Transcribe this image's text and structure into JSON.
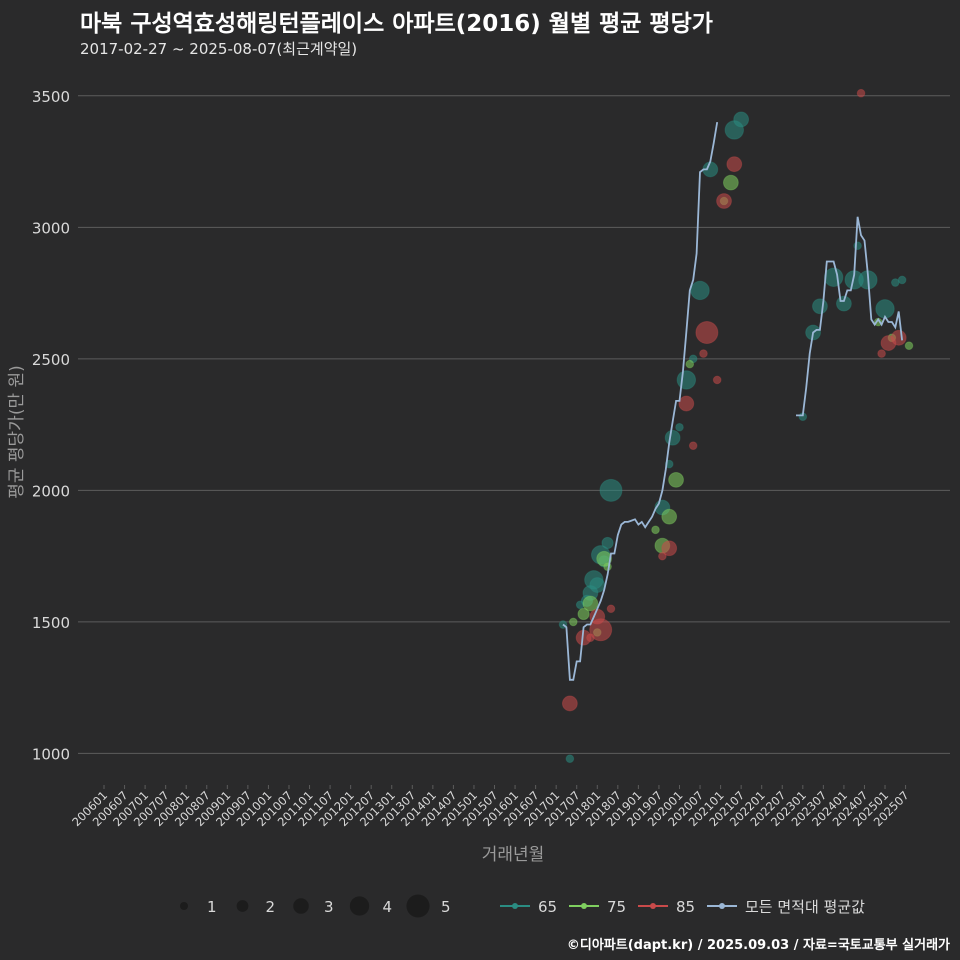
{
  "header": {
    "title": "마북 구성역효성해링턴플레이스 아파트(2016) 월별 평균 평당가",
    "subtitle": "2017-02-27 ~ 2025-08-07(최근계약일)"
  },
  "footer": {
    "caption": "©디아파트(dapt.kr) / 2025.09.03 / 자료=국토교통부 실거래가"
  },
  "colors": {
    "background": "#2a2a2b",
    "grid": "#5c5c5c",
    "axis_text": "#d9d9d9",
    "axis_title": "#9a9a9a",
    "area_65": "#2a8c82",
    "area_75": "#7fcf5f",
    "area_85": "#c94a4a",
    "avg_line": "#9bb7d6"
  },
  "chart_data": {
    "type": "scatter+line",
    "title": "마북 구성역효성해링턴플레이스 아파트(2016) 월별 평균 평당가",
    "xlabel": "거래년월",
    "ylabel": "평균 평당가(만 원)",
    "ylim": [
      880,
      3560
    ],
    "yticks": [
      1000,
      1500,
      2000,
      2500,
      3000,
      3500
    ],
    "xticks": [
      "200601",
      "200607",
      "200701",
      "200707",
      "200801",
      "200807",
      "200901",
      "200907",
      "201001",
      "201007",
      "201101",
      "201107",
      "201201",
      "201207",
      "201301",
      "201307",
      "201401",
      "201407",
      "201501",
      "201507",
      "201601",
      "201607",
      "201701",
      "201707",
      "201801",
      "201807",
      "201901",
      "201907",
      "202001",
      "202007",
      "202101",
      "202107",
      "202201",
      "202207",
      "202301",
      "202307",
      "202401",
      "202407",
      "202501",
      "202507"
    ],
    "xrange": [
      "2006-01",
      "2025-08"
    ],
    "legend": {
      "size_title": "",
      "sizes": [
        1,
        2,
        3,
        4,
        5
      ],
      "series_labels": [
        "65",
        "75",
        "85",
        "모든 면적대 평균값"
      ]
    },
    "series": [
      {
        "name": "65",
        "points": [
          {
            "t": "2017-03",
            "y": 1490,
            "n": 1
          },
          {
            "t": "2017-05",
            "y": 980,
            "n": 1
          },
          {
            "t": "2017-08",
            "y": 1565,
            "n": 1
          },
          {
            "t": "2017-10",
            "y": 1580,
            "n": 2
          },
          {
            "t": "2017-11",
            "y": 1610,
            "n": 3
          },
          {
            "t": "2017-12",
            "y": 1660,
            "n": 4
          },
          {
            "t": "2018-01",
            "y": 1640,
            "n": 3
          },
          {
            "t": "2018-02",
            "y": 1755,
            "n": 4
          },
          {
            "t": "2018-03",
            "y": 1730,
            "n": 2
          },
          {
            "t": "2018-04",
            "y": 1800,
            "n": 2
          },
          {
            "t": "2018-05",
            "y": 2000,
            "n": 5
          },
          {
            "t": "2019-08",
            "y": 1935,
            "n": 3
          },
          {
            "t": "2019-10",
            "y": 2100,
            "n": 1
          },
          {
            "t": "2019-11",
            "y": 2200,
            "n": 3
          },
          {
            "t": "2020-01",
            "y": 2240,
            "n": 1
          },
          {
            "t": "2020-03",
            "y": 2420,
            "n": 4
          },
          {
            "t": "2020-05",
            "y": 2500,
            "n": 1
          },
          {
            "t": "2020-07",
            "y": 2760,
            "n": 4
          },
          {
            "t": "2020-10",
            "y": 3220,
            "n": 3
          },
          {
            "t": "2021-05",
            "y": 3370,
            "n": 4
          },
          {
            "t": "2021-07",
            "y": 3410,
            "n": 3
          },
          {
            "t": "2023-01",
            "y": 2280,
            "n": 1
          },
          {
            "t": "2023-04",
            "y": 2600,
            "n": 3
          },
          {
            "t": "2023-06",
            "y": 2700,
            "n": 3
          },
          {
            "t": "2023-10",
            "y": 2810,
            "n": 4
          },
          {
            "t": "2024-01",
            "y": 2710,
            "n": 3
          },
          {
            "t": "2024-04",
            "y": 2800,
            "n": 4
          },
          {
            "t": "2024-05",
            "y": 2930,
            "n": 1
          },
          {
            "t": "2024-08",
            "y": 2800,
            "n": 4
          },
          {
            "t": "2025-01",
            "y": 2690,
            "n": 4
          },
          {
            "t": "2025-04",
            "y": 2790,
            "n": 1
          },
          {
            "t": "2025-06",
            "y": 2800,
            "n": 1
          }
        ]
      },
      {
        "name": "75",
        "points": [
          {
            "t": "2017-06",
            "y": 1500,
            "n": 1
          },
          {
            "t": "2017-09",
            "y": 1530,
            "n": 2
          },
          {
            "t": "2017-11",
            "y": 1570,
            "n": 3
          },
          {
            "t": "2018-01",
            "y": 1460,
            "n": 1
          },
          {
            "t": "2018-03",
            "y": 1740,
            "n": 3
          },
          {
            "t": "2018-04",
            "y": 1710,
            "n": 1
          },
          {
            "t": "2019-06",
            "y": 1850,
            "n": 1
          },
          {
            "t": "2019-08",
            "y": 1790,
            "n": 3
          },
          {
            "t": "2019-10",
            "y": 1900,
            "n": 3
          },
          {
            "t": "2019-12",
            "y": 2040,
            "n": 3
          },
          {
            "t": "2020-04",
            "y": 2480,
            "n": 1
          },
          {
            "t": "2021-02",
            "y": 3100,
            "n": 1
          },
          {
            "t": "2021-04",
            "y": 3170,
            "n": 3
          },
          {
            "t": "2024-11",
            "y": 2640,
            "n": 1
          },
          {
            "t": "2025-03",
            "y": 2580,
            "n": 1
          },
          {
            "t": "2025-08",
            "y": 2550,
            "n": 1
          }
        ]
      },
      {
        "name": "85",
        "points": [
          {
            "t": "2017-05",
            "y": 1190,
            "n": 3
          },
          {
            "t": "2017-09",
            "y": 1440,
            "n": 3
          },
          {
            "t": "2017-11",
            "y": 1440,
            "n": 1
          },
          {
            "t": "2018-01",
            "y": 1520,
            "n": 3
          },
          {
            "t": "2018-02",
            "y": 1470,
            "n": 5
          },
          {
            "t": "2018-05",
            "y": 1550,
            "n": 1
          },
          {
            "t": "2019-08",
            "y": 1750,
            "n": 1
          },
          {
            "t": "2019-10",
            "y": 1780,
            "n": 3
          },
          {
            "t": "2020-03",
            "y": 2330,
            "n": 3
          },
          {
            "t": "2020-05",
            "y": 2170,
            "n": 1
          },
          {
            "t": "2020-08",
            "y": 2520,
            "n": 1
          },
          {
            "t": "2020-09",
            "y": 2600,
            "n": 5
          },
          {
            "t": "2020-12",
            "y": 2420,
            "n": 1
          },
          {
            "t": "2021-02",
            "y": 3100,
            "n": 3
          },
          {
            "t": "2021-05",
            "y": 3240,
            "n": 3
          },
          {
            "t": "2024-06",
            "y": 3510,
            "n": 1
          },
          {
            "t": "2024-12",
            "y": 2520,
            "n": 1
          },
          {
            "t": "2025-02",
            "y": 2560,
            "n": 3
          },
          {
            "t": "2025-05",
            "y": 2580,
            "n": 3
          }
        ]
      },
      {
        "name": "모든 면적대 평균값",
        "segments": [
          [
            {
              "t": "2017-03",
              "y": 1490
            },
            {
              "t": "2017-04",
              "y": 1480
            },
            {
              "t": "2017-05",
              "y": 1280
            },
            {
              "t": "2017-06",
              "y": 1280
            },
            {
              "t": "2017-07",
              "y": 1350
            },
            {
              "t": "2017-08",
              "y": 1350
            },
            {
              "t": "2017-09",
              "y": 1480
            },
            {
              "t": "2017-10",
              "y": 1490
            },
            {
              "t": "2017-11",
              "y": 1490
            },
            {
              "t": "2017-12",
              "y": 1520
            },
            {
              "t": "2018-01",
              "y": 1550
            },
            {
              "t": "2018-02",
              "y": 1580
            },
            {
              "t": "2018-03",
              "y": 1620
            },
            {
              "t": "2018-04",
              "y": 1680
            },
            {
              "t": "2018-05",
              "y": 1760
            },
            {
              "t": "2018-06",
              "y": 1760
            },
            {
              "t": "2018-07",
              "y": 1830
            },
            {
              "t": "2018-08",
              "y": 1870
            },
            {
              "t": "2018-09",
              "y": 1880
            },
            {
              "t": "2018-10",
              "y": 1880
            },
            {
              "t": "2018-11",
              "y": 1885
            },
            {
              "t": "2018-12",
              "y": 1890
            },
            {
              "t": "2019-01",
              "y": 1870
            },
            {
              "t": "2019-02",
              "y": 1880
            },
            {
              "t": "2019-03",
              "y": 1860
            },
            {
              "t": "2019-04",
              "y": 1880
            },
            {
              "t": "2019-05",
              "y": 1900
            },
            {
              "t": "2019-06",
              "y": 1930
            },
            {
              "t": "2019-07",
              "y": 1950
            },
            {
              "t": "2019-08",
              "y": 2000
            },
            {
              "t": "2019-09",
              "y": 2080
            },
            {
              "t": "2019-10",
              "y": 2180
            },
            {
              "t": "2019-11",
              "y": 2260
            },
            {
              "t": "2019-12",
              "y": 2340
            },
            {
              "t": "2020-01",
              "y": 2340
            },
            {
              "t": "2020-02",
              "y": 2450
            },
            {
              "t": "2020-03",
              "y": 2600
            },
            {
              "t": "2020-04",
              "y": 2760
            },
            {
              "t": "2020-05",
              "y": 2800
            },
            {
              "t": "2020-06",
              "y": 2900
            },
            {
              "t": "2020-07",
              "y": 3210
            },
            {
              "t": "2020-08",
              "y": 3220
            },
            {
              "t": "2020-09",
              "y": 3220
            },
            {
              "t": "2020-10",
              "y": 3250
            },
            {
              "t": "2020-11",
              "y": 3320
            },
            {
              "t": "2020-12",
              "y": 3400
            }
          ],
          [
            {
              "t": "2022-11",
              "y": 2285
            },
            {
              "t": "2023-01",
              "y": 2285
            },
            {
              "t": "2023-02",
              "y": 2390
            },
            {
              "t": "2023-03",
              "y": 2520
            },
            {
              "t": "2023-04",
              "y": 2600
            },
            {
              "t": "2023-05",
              "y": 2610
            },
            {
              "t": "2023-06",
              "y": 2610
            },
            {
              "t": "2023-07",
              "y": 2720
            },
            {
              "t": "2023-08",
              "y": 2870
            },
            {
              "t": "2023-09",
              "y": 2870
            },
            {
              "t": "2023-10",
              "y": 2870
            },
            {
              "t": "2023-11",
              "y": 2820
            },
            {
              "t": "2023-12",
              "y": 2720
            },
            {
              "t": "2024-01",
              "y": 2720
            },
            {
              "t": "2024-02",
              "y": 2760
            },
            {
              "t": "2024-03",
              "y": 2760
            },
            {
              "t": "2024-04",
              "y": 2820
            },
            {
              "t": "2024-05",
              "y": 3040
            },
            {
              "t": "2024-06",
              "y": 2970
            },
            {
              "t": "2024-07",
              "y": 2950
            },
            {
              "t": "2024-08",
              "y": 2820
            },
            {
              "t": "2024-09",
              "y": 2650
            },
            {
              "t": "2024-10",
              "y": 2630
            },
            {
              "t": "2024-11",
              "y": 2650
            },
            {
              "t": "2024-12",
              "y": 2630
            },
            {
              "t": "2025-01",
              "y": 2660
            },
            {
              "t": "2025-02",
              "y": 2640
            },
            {
              "t": "2025-03",
              "y": 2640
            },
            {
              "t": "2025-04",
              "y": 2620
            },
            {
              "t": "2025-05",
              "y": 2680
            },
            {
              "t": "2025-06",
              "y": 2570
            }
          ]
        ]
      }
    ]
  }
}
